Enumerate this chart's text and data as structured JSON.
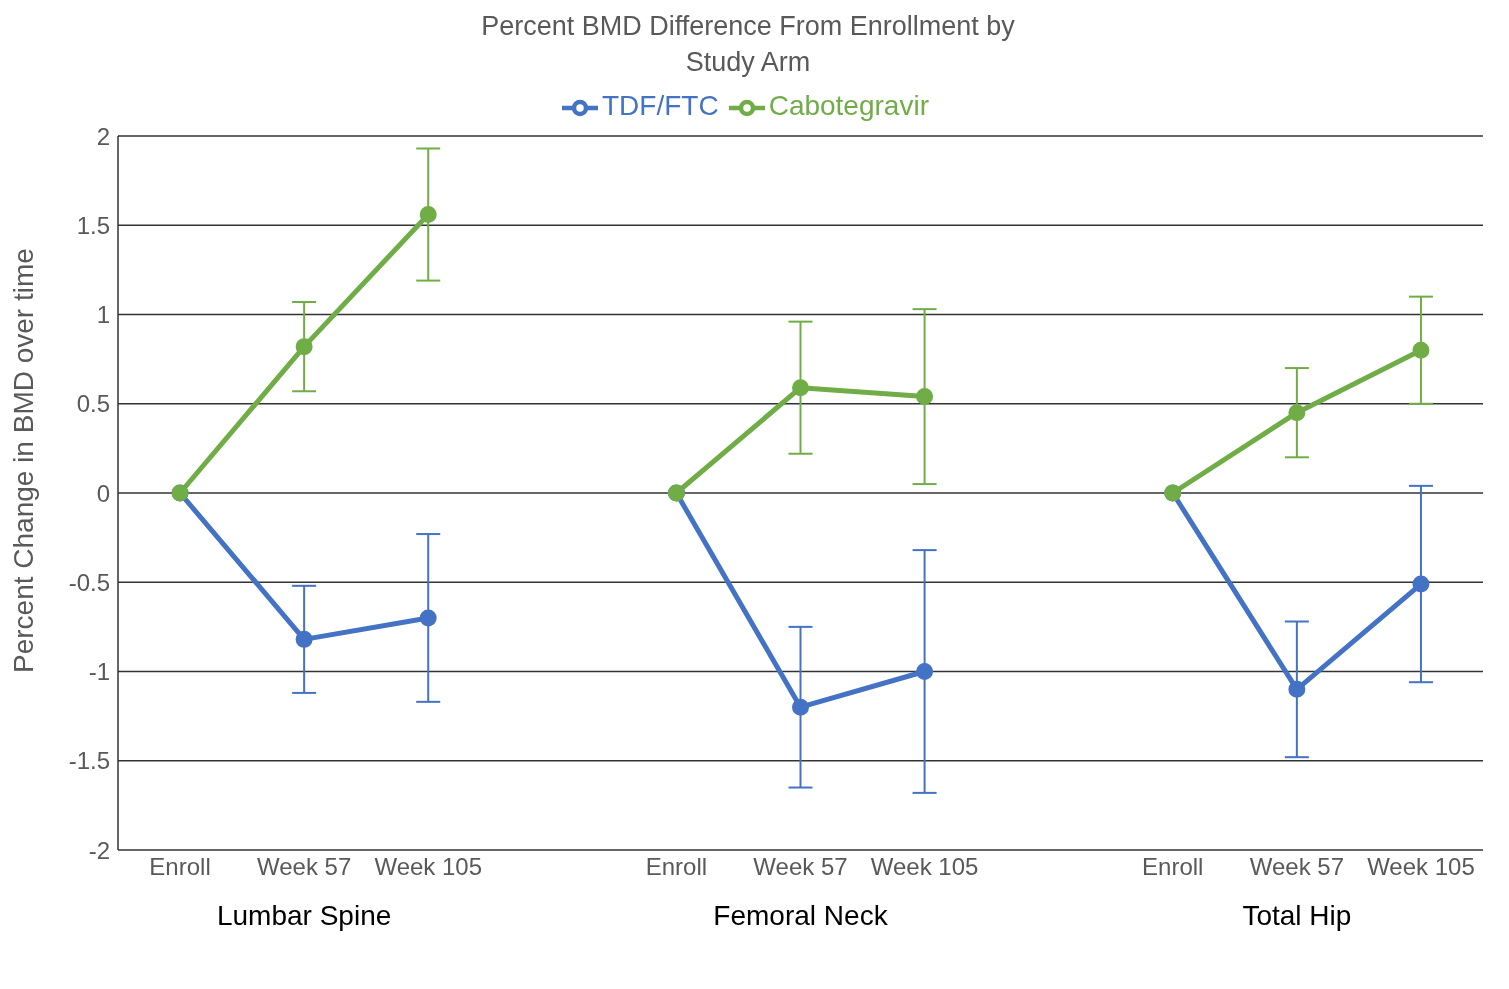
{
  "chart_data": {
    "type": "line",
    "title": "Percent BMD Difference From Enrollment by Study Arm",
    "ylabel": "Percent Change in BMD over time",
    "categories": [
      "Enroll",
      "Week 57",
      "Week 105",
      null,
      "Enroll",
      "Week 57",
      "Week 105",
      null,
      "Enroll",
      "Week 57",
      "Week 105"
    ],
    "series": [
      {
        "name": "TDF/FTC",
        "color": "#4472c4",
        "values": [
          0,
          -0.82,
          -0.7,
          null,
          0,
          -1.2,
          -1.0,
          null,
          0,
          -1.1,
          -0.51
        ],
        "errors": [
          null,
          0.3,
          0.47,
          null,
          null,
          0.45,
          0.68,
          null,
          null,
          0.38,
          0.55
        ]
      },
      {
        "name": "Cabotegravir",
        "color": "#70ad47",
        "values": [
          0,
          0.82,
          1.56,
          null,
          0,
          0.59,
          0.54,
          null,
          0,
          0.45,
          0.8
        ],
        "errors": [
          null,
          0.25,
          0.37,
          null,
          null,
          0.37,
          0.49,
          null,
          null,
          0.25,
          0.3
        ]
      }
    ],
    "annotations": [
      "Lumbar Spine",
      "Femoral Neck",
      "Total Hip"
    ],
    "ylim": [
      -2,
      2
    ],
    "yticks": [
      -2,
      -1.5,
      -1,
      -0.5,
      0,
      0.5,
      1,
      1.5,
      2
    ],
    "grid": "y",
    "legend": "top",
    "marker": "circle",
    "line_style": "solid"
  }
}
